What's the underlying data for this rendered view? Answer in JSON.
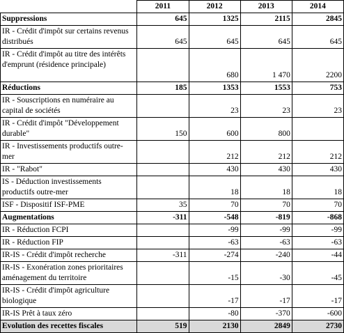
{
  "table": {
    "columns": [
      "2011",
      "2012",
      "2013",
      "2014"
    ],
    "rows": [
      {
        "label": "Suppressions",
        "values": [
          "645",
          "1325",
          "2115",
          "2845"
        ],
        "kind": "section"
      },
      {
        "label": "IR - Crédit d'impôt sur certains revenus distribués",
        "values": [
          "645",
          "645",
          "645",
          "645"
        ],
        "kind": "item"
      },
      {
        "label": "IR - Crédit d'impôt au titre des intérêts d'emprunt (résidence principale)",
        "values": [
          "",
          "680",
          "1 470",
          "2200"
        ],
        "kind": "item"
      },
      {
        "label": "Réductions",
        "values": [
          "185",
          "1353",
          "1553",
          "753"
        ],
        "kind": "section"
      },
      {
        "label": "IR - Souscriptions en numéraire au capital de sociétés",
        "values": [
          "",
          "23",
          "23",
          "23"
        ],
        "kind": "item"
      },
      {
        "label": "IR - Crédit d'impôt \"Développement durable\"",
        "values": [
          "150",
          "600",
          "800",
          ""
        ],
        "kind": "item"
      },
      {
        "label": "IR - Investissements productifs outre-mer",
        "values": [
          "",
          "212",
          "212",
          "212"
        ],
        "kind": "item"
      },
      {
        "label": "IR - \"Rabot\"",
        "values": [
          "",
          "430",
          "430",
          "430"
        ],
        "kind": "item"
      },
      {
        "label": "IS - Déduction investissements productifs outre-mer",
        "values": [
          "",
          "18",
          "18",
          "18"
        ],
        "kind": "item"
      },
      {
        "label": "ISF - Dispositif ISF-PME",
        "values": [
          "35",
          "70",
          "70",
          "70"
        ],
        "kind": "item"
      },
      {
        "label": "Augmentations",
        "values": [
          "-311",
          "-548",
          "-819",
          "-868"
        ],
        "kind": "section"
      },
      {
        "label": "IR - Réduction FCPI",
        "values": [
          "",
          "-99",
          "-99",
          "-99"
        ],
        "kind": "item"
      },
      {
        "label": "IR - Réduction FIP",
        "values": [
          "",
          "-63",
          "-63",
          "-63"
        ],
        "kind": "item"
      },
      {
        "label": "IR-IS - Crédit d'impôt recherche",
        "values": [
          "-311",
          "-274",
          "-240",
          "-44"
        ],
        "kind": "item"
      },
      {
        "label": "IR-IS - Exonération zones prioritaires aménagement du territoire",
        "values": [
          "",
          "-15",
          "-30",
          "-45"
        ],
        "kind": "item"
      },
      {
        "label": "IR-IS - Crédit d'impôt agriculture biologique",
        "values": [
          "",
          "-17",
          "-17",
          "-17"
        ],
        "kind": "item"
      },
      {
        "label": "IR-IS Prêt à taux zéro",
        "values": [
          "",
          "-80",
          "-370",
          "-600"
        ],
        "kind": "item"
      },
      {
        "label": "Evolution des recettes fiscales",
        "values": [
          "519",
          "2130",
          "2849",
          "2730"
        ],
        "kind": "total"
      }
    ]
  }
}
